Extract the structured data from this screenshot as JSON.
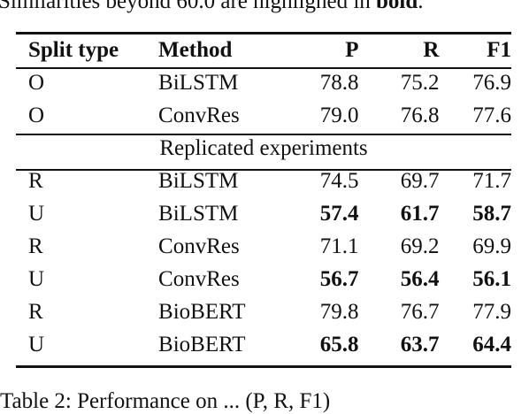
{
  "caption_top": {
    "text": "Similarities beyond 60.0 are highlighed in ",
    "bold": "bold",
    "end": "."
  },
  "table": {
    "headers": {
      "split": "Split type",
      "method": "Method",
      "p": "P",
      "r": "R",
      "f1": "F1"
    },
    "original_rows": [
      {
        "split": "O",
        "method": "BiLSTM",
        "p": "78.8",
        "r": "75.2",
        "f1": "76.9"
      },
      {
        "split": "O",
        "method": "ConvRes",
        "p": "79.0",
        "r": "76.8",
        "f1": "77.6"
      }
    ],
    "section_label": "Replicated experiments",
    "replicated_rows": [
      {
        "split": "R",
        "method": "BiLSTM",
        "p": "74.5",
        "r": "69.7",
        "f1": "71.7",
        "bold": false
      },
      {
        "split": "U",
        "method": "BiLSTM",
        "p": "57.4",
        "r": "61.7",
        "f1": "58.7",
        "bold": true
      },
      {
        "split": "R",
        "method": "ConvRes",
        "p": "71.1",
        "r": "69.2",
        "f1": "69.9",
        "bold": false
      },
      {
        "split": "U",
        "method": "ConvRes",
        "p": "56.7",
        "r": "56.4",
        "f1": "56.1",
        "bold": true
      },
      {
        "split": "R",
        "method": "BioBERT",
        "p": "79.8",
        "r": "76.7",
        "f1": "77.9",
        "bold": false
      },
      {
        "split": "U",
        "method": "BioBERT",
        "p": "65.8",
        "r": "63.7",
        "f1": "64.4",
        "bold": true
      }
    ]
  },
  "caption_bottom": "Table 2:  Performance on ... (P, R, F1)"
}
